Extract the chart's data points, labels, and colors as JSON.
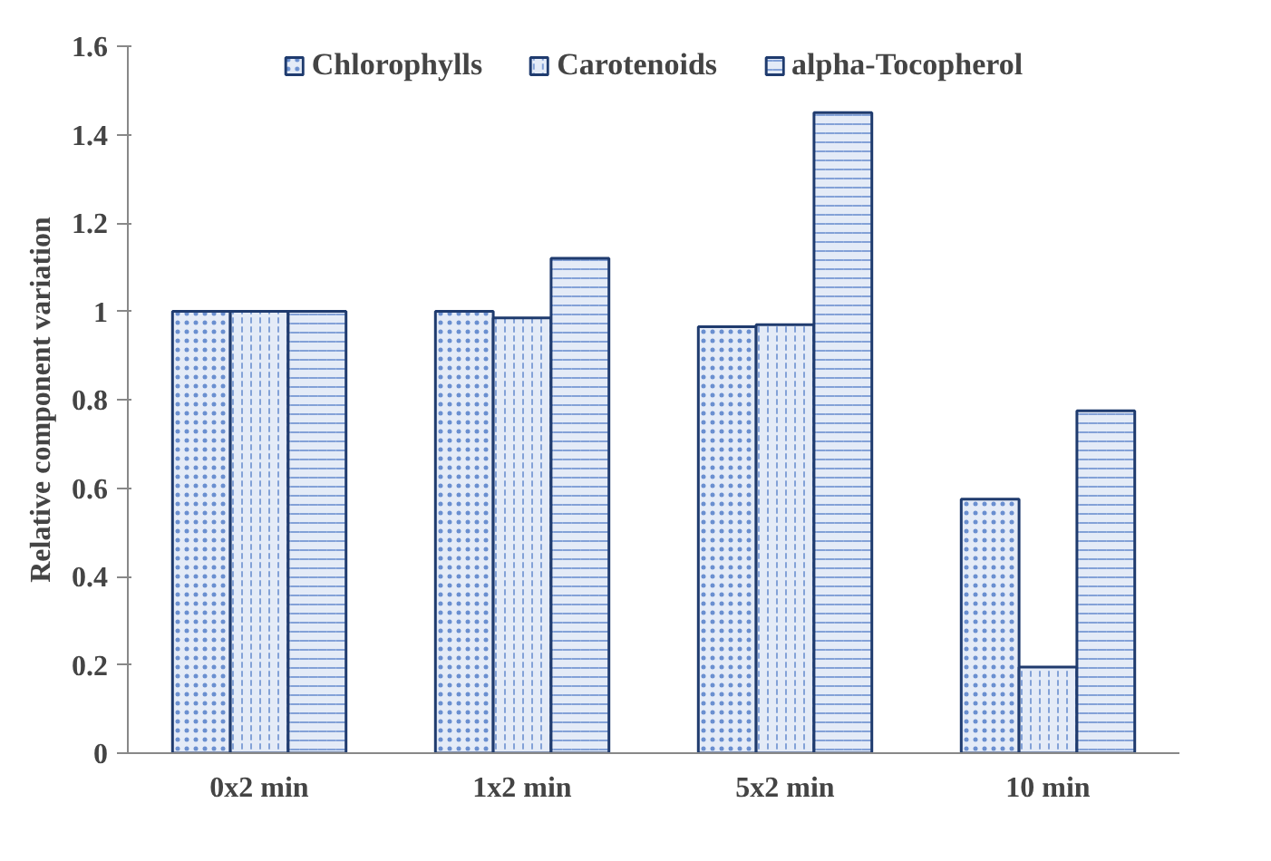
{
  "chart_data": {
    "type": "bar",
    "ylabel": "Relative component variation",
    "categories": [
      "0x2 min",
      "1x2 min",
      "5x2 min",
      "10 min"
    ],
    "series": [
      {
        "name": "Chlorophylls",
        "color": "#e4ebf7",
        "values": [
          1.0,
          1.0,
          0.965,
          0.575
        ]
      },
      {
        "name": "Carotenoids",
        "color": "#e4ebf7",
        "values": [
          1.0,
          0.985,
          0.97,
          0.195
        ]
      },
      {
        "name": "alpha-Tocopherol",
        "color": "#e4ebf7",
        "values": [
          1.0,
          1.12,
          1.45,
          0.775
        ]
      }
    ],
    "ylim": [
      0,
      1.6
    ],
    "yticks": [
      0,
      0.2,
      0.4,
      0.6,
      0.8,
      1,
      1.2,
      1.4,
      1.6
    ],
    "grid": false,
    "legend": "top"
  }
}
